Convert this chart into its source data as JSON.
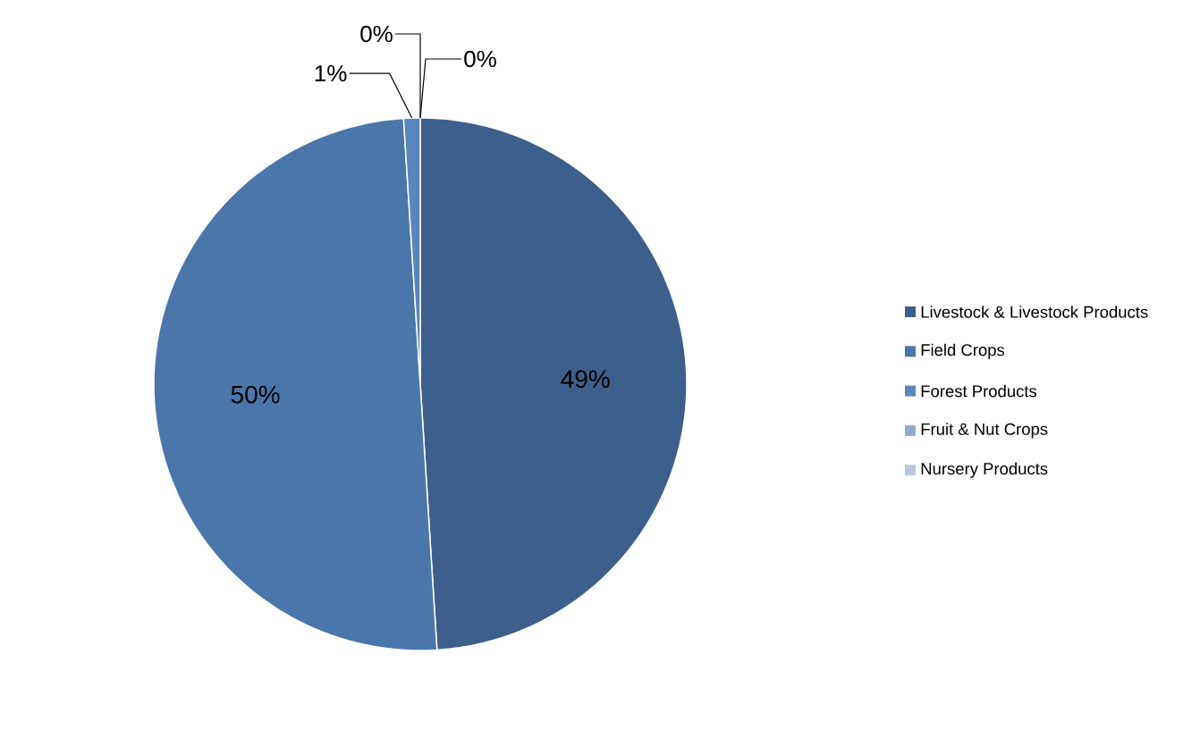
{
  "chart_data": {
    "type": "pie",
    "categories": [
      "Livestock & Livestock Products",
      "Field Crops",
      "Forest Products",
      "Fruit & Nut Crops",
      "Nursery Products"
    ],
    "values": [
      49,
      50,
      1,
      0,
      0
    ],
    "value_labels": [
      "49%",
      "50%",
      "1%",
      "0%",
      "0%"
    ],
    "colors": [
      "#3c5f8c",
      "#4a76aa",
      "#5a86bd",
      "#95a9cf",
      "#b9c8e1"
    ],
    "legend": "right"
  }
}
